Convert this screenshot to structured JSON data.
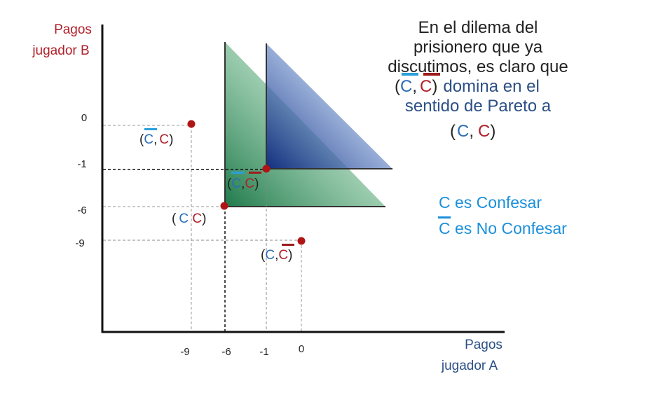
{
  "axes": {
    "y_label_line1": "Pagos",
    "y_label_line2": "jugador B",
    "x_label_line1": "Pagos",
    "x_label_line2": "jugador A",
    "y_ticks": [
      "0",
      "-1",
      "-6",
      "-9"
    ],
    "x_ticks": [
      "-9",
      "-6",
      "-1",
      "0"
    ]
  },
  "points": [
    {
      "x": -9,
      "y": 0,
      "open": "(",
      "first": "C",
      "sep": ",",
      "second": "C",
      "close": ")",
      "bar_first": true,
      "bar_second": false
    },
    {
      "x": -1,
      "y": -1,
      "open": "(",
      "first": "C",
      "sep": ",",
      "second": "C",
      "close": ")",
      "bar_first": true,
      "bar_second": true
    },
    {
      "x": -6,
      "y": -6,
      "open": "(",
      "first": "C",
      "sep": " ",
      "second": "C",
      "close": ")",
      "bar_first": false,
      "bar_second": false
    },
    {
      "x": 0,
      "y": -9,
      "open": "(",
      "first": "C",
      "sep": ",",
      "second": "C",
      "close": ")",
      "bar_first": false,
      "bar_second": true
    }
  ],
  "statement": {
    "line1": "En el dilema del",
    "line2": "prisionero que ya",
    "line3": "discutimos, es claro que",
    "line4_open": "(",
    "line4_c1": "C",
    "line4_comma": ",",
    "line4_c2": "C",
    "line4_close": ")",
    "line4_rest": "domina en el",
    "line5": "sentido de Pareto a",
    "line6_open": "(",
    "line6_c1": "C",
    "line6_comma": ",",
    "line6_c2": "C",
    "line6_close": ")"
  },
  "legend": {
    "confess": "C es Confesar",
    "not_confess": "C es No Confesar"
  },
  "colors": {
    "axis_label": "#b0202a",
    "x_axis_label": "#2c4f86",
    "c_blue": "#2a6db6",
    "c_red": "#b0202a",
    "bar_blue": "#2aa0dc",
    "bar_red": "#9e1b1b",
    "dot": "#b01515",
    "legend": "#1b8fdb",
    "green": "#2e8b57",
    "blue_region": "#1d3d8f",
    "text_dark": "#222222"
  }
}
